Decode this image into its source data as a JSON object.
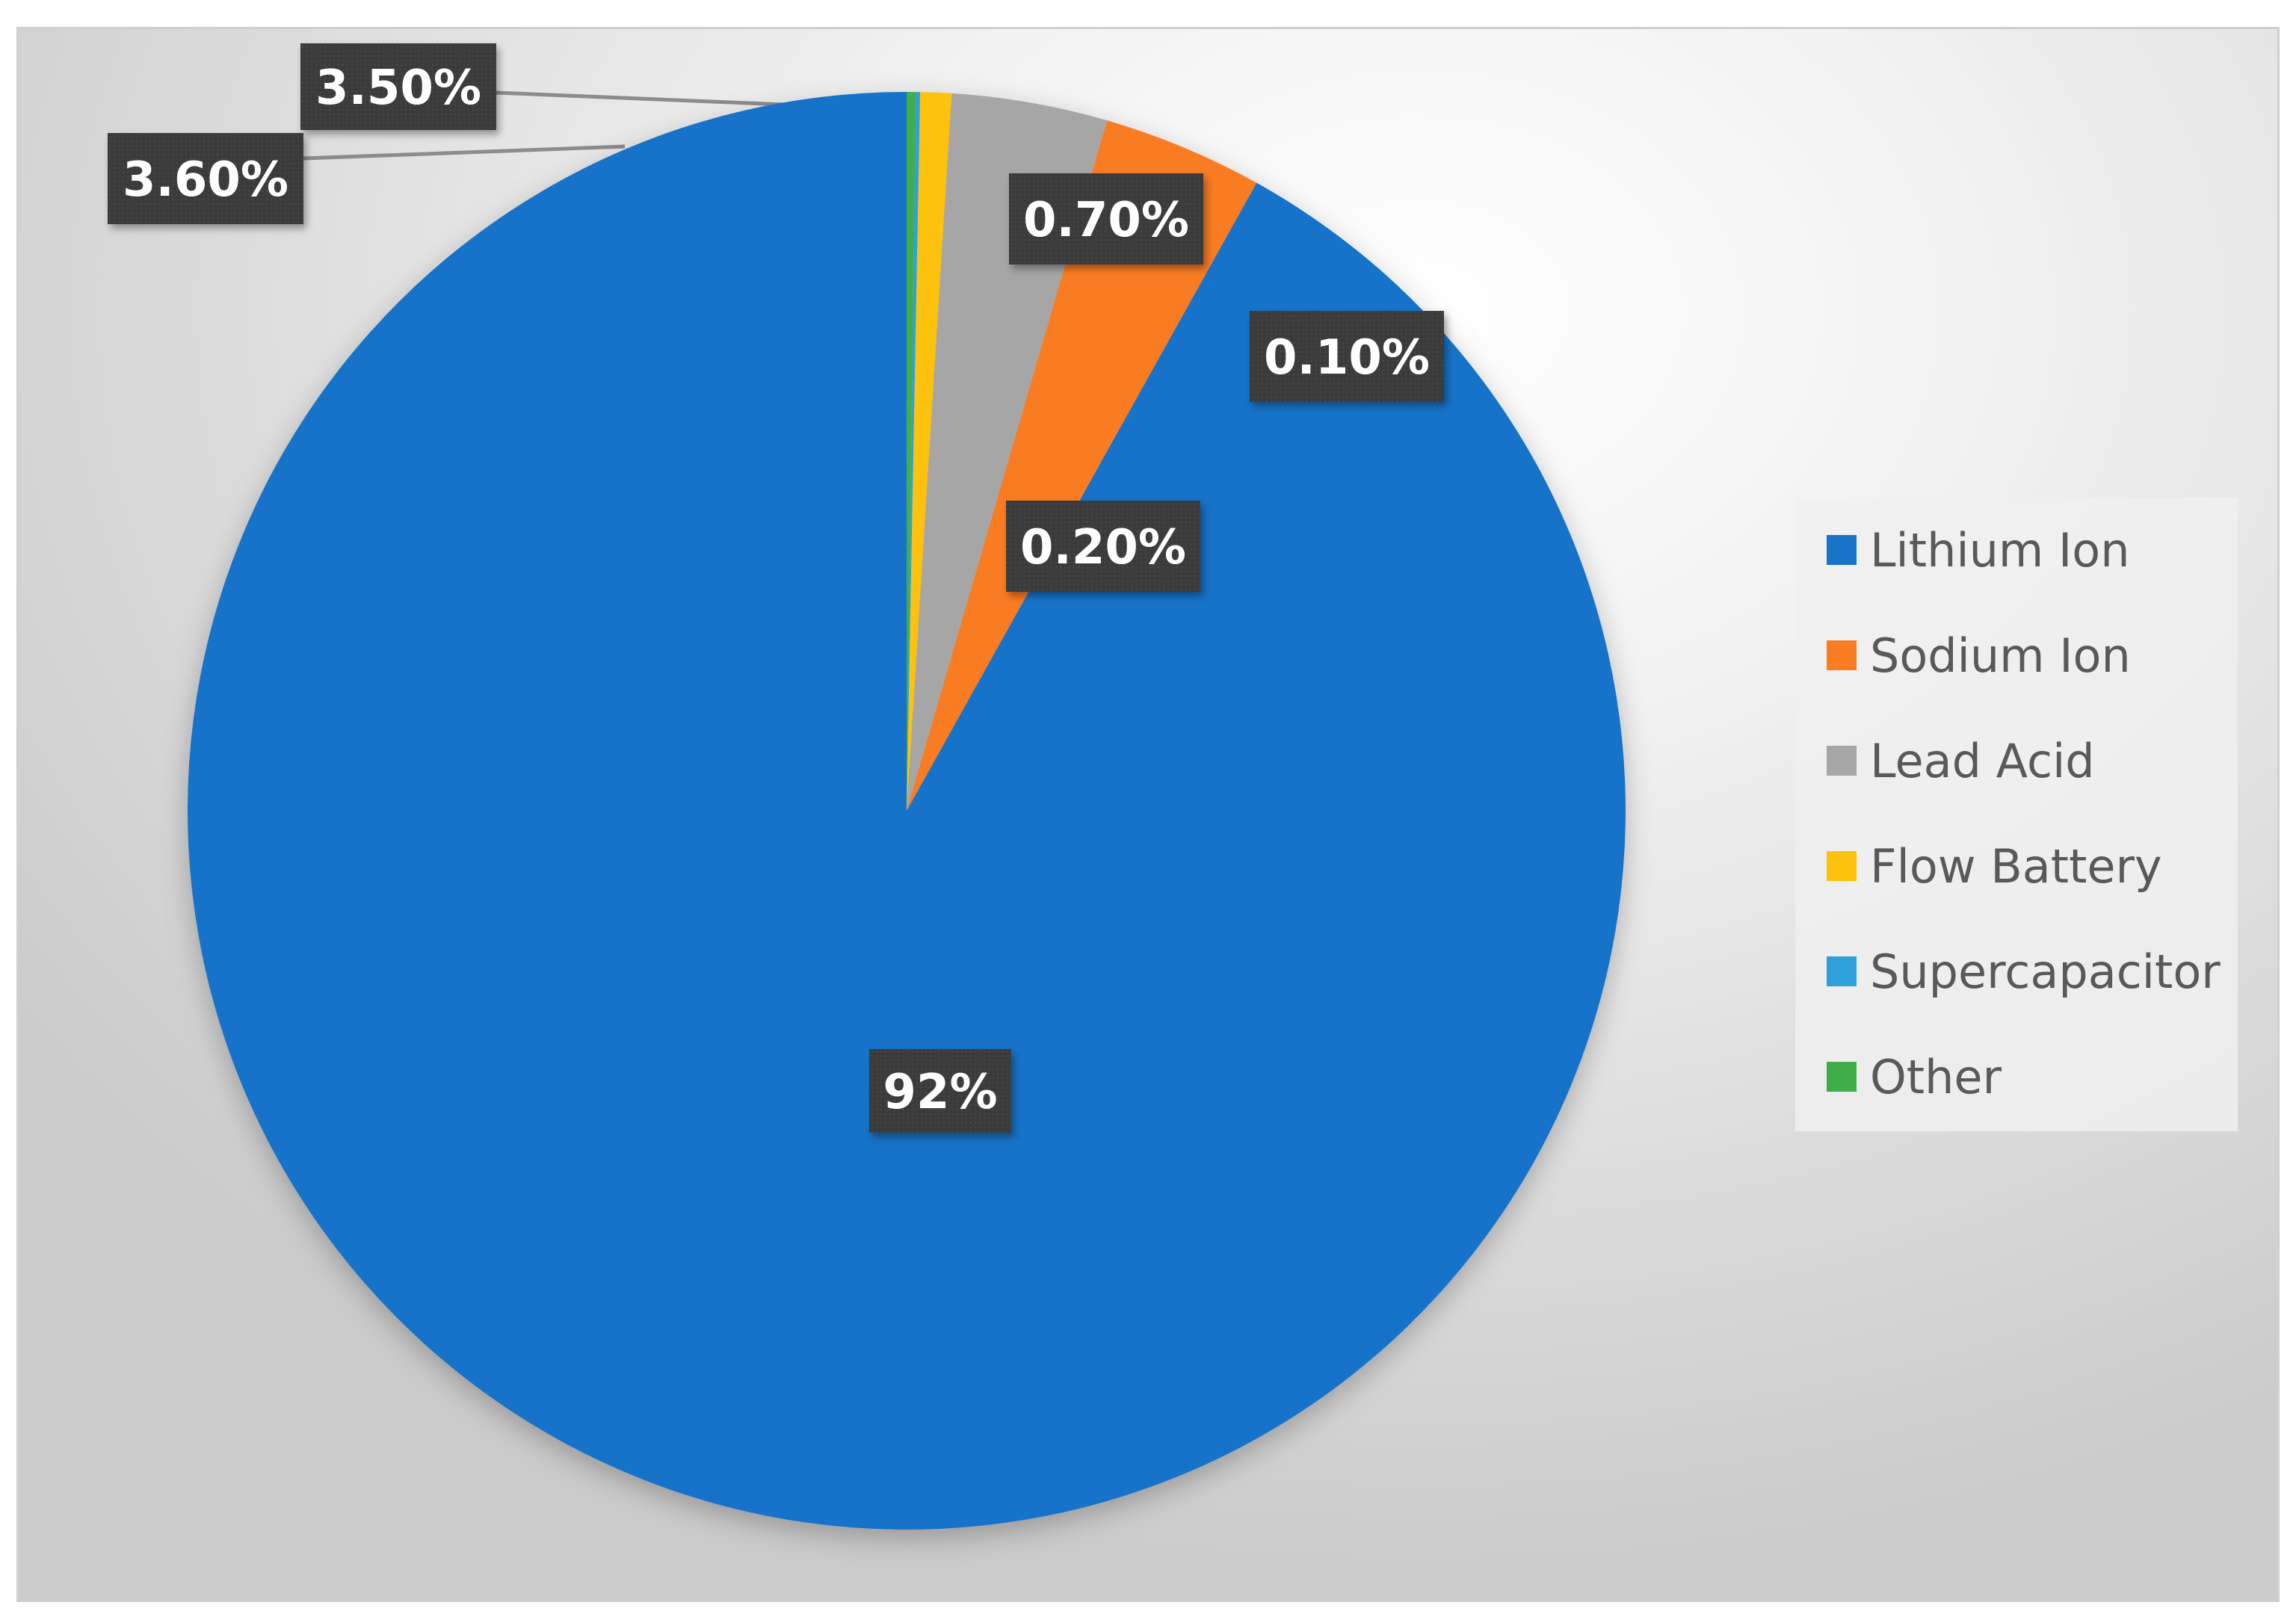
{
  "chart_data": {
    "type": "pie",
    "title": "",
    "categories": [
      "Lithium Ion",
      "Sodium Ion",
      "Lead Acid",
      "Flow Battery",
      "Supercapacitor",
      "Other"
    ],
    "values": [
      92,
      3.6,
      3.5,
      0.7,
      0.1,
      0.2
    ],
    "data_labels": [
      "92%",
      "3.60%",
      "3.50%",
      "0.70%",
      "0.10%",
      "0.20%"
    ],
    "colors": [
      "#1873c9",
      "#fa7c23",
      "#a6a6a6",
      "#fdc20d",
      "#2ea0dc",
      "#3fae49"
    ],
    "legend_position": "right",
    "start_angle_deg": 0,
    "direction": "counterclockwise-from-top"
  }
}
